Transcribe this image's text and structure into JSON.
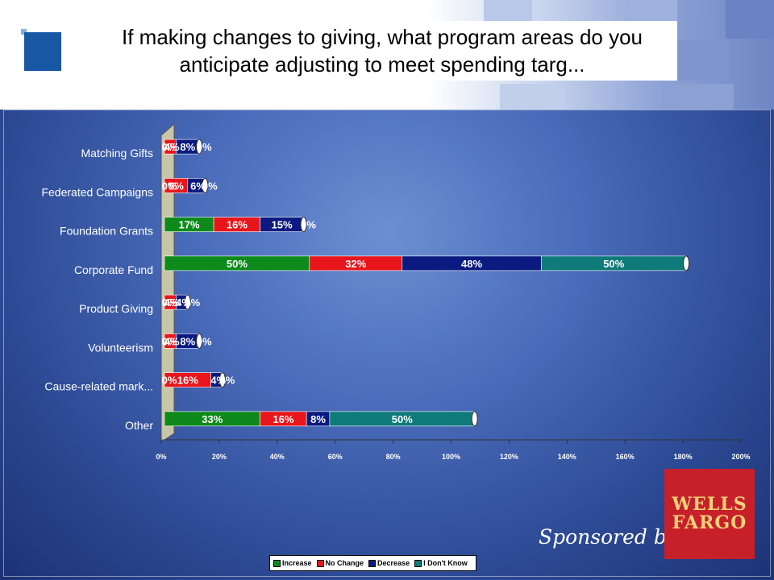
{
  "title": "If making changes to giving, what program areas do you anticipate adjusting to meet spending targ...",
  "sponsor": {
    "text": "Sponsored by",
    "logo_line1": "WELLS",
    "logo_line2": "FARGO"
  },
  "colors": {
    "increase": "#0e8a1c",
    "no_change": "#e8161c",
    "decrease": "#0a1a80",
    "dont_know": "#0f7a7a"
  },
  "chart_data": {
    "type": "bar",
    "orientation": "horizontal",
    "stacked": true,
    "categories": [
      "Matching Gifts",
      "Federated Campaigns",
      "Foundation Grants",
      "Corporate Fund",
      "Product Giving",
      "Volunteerism",
      "Cause-related mark...",
      "Other"
    ],
    "series": [
      {
        "name": "Increase",
        "values": [
          0,
          0,
          17,
          50,
          0,
          0,
          0,
          33
        ],
        "labels": [
          "0%",
          "0%",
          "17%",
          "50%",
          "0%",
          "0%",
          "0%",
          "33%"
        ]
      },
      {
        "name": "No Change",
        "values": [
          4,
          8,
          16,
          32,
          4,
          4,
          16,
          16
        ],
        "labels": [
          "4%",
          "8%",
          "16%",
          "32%",
          "4%",
          "4%",
          "16%",
          "16%"
        ]
      },
      {
        "name": "Decrease",
        "values": [
          8,
          6,
          15,
          48,
          4,
          8,
          4,
          8
        ],
        "labels": [
          "8%",
          "6%",
          "15%",
          "48%",
          "4%",
          "8%",
          "4%",
          "8%"
        ]
      },
      {
        "name": "I Don't Know",
        "values": [
          0,
          0,
          0,
          50,
          0,
          0,
          0,
          50
        ],
        "labels": [
          "0%",
          "0%",
          "0%",
          "50%",
          "0%",
          "0%",
          "0%",
          "50%"
        ]
      }
    ],
    "xlim": [
      0,
      200
    ],
    "xticks": [
      "0%",
      "20%",
      "40%",
      "60%",
      "80%",
      "100%",
      "120%",
      "140%",
      "160%",
      "180%",
      "200%"
    ],
    "legend": {
      "position": "bottom",
      "labels": [
        "Increase",
        "No Change",
        "Decrease",
        "I Don't Know"
      ]
    },
    "grid": false
  }
}
